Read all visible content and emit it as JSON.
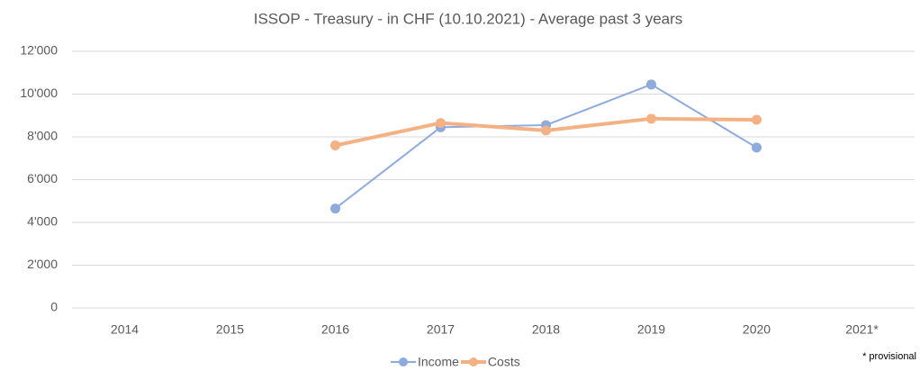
{
  "chart_data": {
    "type": "line",
    "title": "ISSOP - Treasury - in CHF (10.10.2021) - Average past 3 years",
    "categories": [
      "2014",
      "2015",
      "2016",
      "2017",
      "2018",
      "2019",
      "2020",
      "2021*"
    ],
    "series": [
      {
        "name": "Income",
        "color": "#8faadc",
        "values": [
          null,
          null,
          4650,
          8450,
          8550,
          10450,
          7500,
          null
        ]
      },
      {
        "name": "Costs",
        "color": "#f4b183",
        "values": [
          null,
          null,
          7600,
          8650,
          8300,
          8850,
          8800,
          null
        ]
      }
    ],
    "ylim": [
      0,
      12000
    ],
    "yticks": [
      0,
      {
        "value": 2000,
        "label": "2'000"
      },
      {
        "value": 4000,
        "label": "4'000"
      },
      {
        "value": 6000,
        "label": "6'000"
      },
      {
        "value": 8000,
        "label": "8'000"
      },
      {
        "value": 10000,
        "label": "10'000"
      },
      {
        "value": 12000,
        "label": "12'000"
      }
    ],
    "grid": true,
    "legend": "bottom",
    "annotation": "* provisional"
  }
}
